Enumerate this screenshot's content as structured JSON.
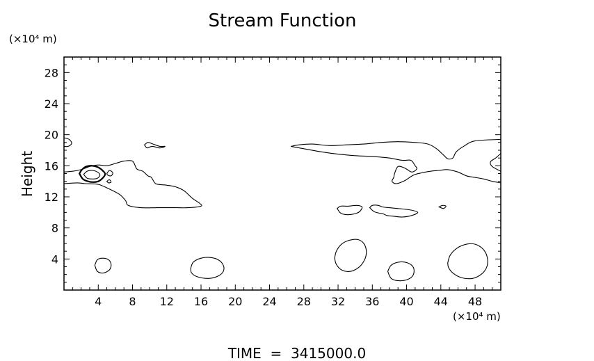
{
  "chart_data": {
    "type": "contour",
    "title": "Stream Function",
    "ylabel": "Height",
    "y_unit": "(×10⁴ m)",
    "x_unit": "(×10⁴ m)",
    "xlim": [
      0,
      51
    ],
    "ylim": [
      0,
      30
    ],
    "x_ticks": [
      4,
      8,
      12,
      16,
      20,
      24,
      28,
      32,
      36,
      40,
      44,
      48
    ],
    "y_ticks": [
      4,
      8,
      12,
      16,
      20,
      24,
      28
    ],
    "footer": "TIME  =  3415000.0",
    "contours": [
      {
        "heavy": false,
        "points": [
          [
            0,
            15.2
          ],
          [
            1,
            15.3
          ],
          [
            2,
            15.5
          ],
          [
            3,
            15.9
          ],
          [
            4,
            16.1
          ],
          [
            5,
            16.0
          ],
          [
            6,
            16.3
          ],
          [
            7,
            16.6
          ],
          [
            8,
            16.6
          ],
          [
            8.5,
            15.6
          ],
          [
            9.2,
            15.3
          ],
          [
            9.8,
            14.7
          ],
          [
            10.2,
            14.5
          ],
          [
            10.6,
            13.8
          ],
          [
            11,
            13.6
          ],
          [
            12,
            13.5
          ],
          [
            13,
            13.3
          ],
          [
            14,
            12.8
          ],
          [
            15,
            11.8
          ],
          [
            15.8,
            11.2
          ],
          [
            16,
            10.8
          ],
          [
            14.5,
            10.6
          ],
          [
            13,
            10.6
          ],
          [
            11,
            10.6
          ],
          [
            9,
            10.6
          ],
          [
            7.5,
            10.9
          ],
          [
            7.2,
            11.5
          ],
          [
            6.5,
            12.3
          ],
          [
            5.3,
            13.0
          ],
          [
            4,
            13.6
          ],
          [
            2.5,
            13.7
          ],
          [
            1.5,
            13.8
          ],
          [
            0,
            13.7
          ]
        ],
        "closed": false
      },
      {
        "heavy": false,
        "points": [
          [
            0,
            19.6
          ],
          [
            0.6,
            19.4
          ],
          [
            0.9,
            18.9
          ],
          [
            0.5,
            18.5
          ],
          [
            0,
            18.5
          ]
        ],
        "closed": false
      },
      {
        "heavy": false,
        "points": [
          [
            9.4,
            18.7
          ],
          [
            9.8,
            19.0
          ],
          [
            10.4,
            18.8
          ],
          [
            11.2,
            18.5
          ],
          [
            11.8,
            18.5
          ],
          [
            11.2,
            18.3
          ],
          [
            10.3,
            18.5
          ],
          [
            9.7,
            18.3
          ],
          [
            9.4,
            18.7
          ]
        ],
        "closed": true
      },
      {
        "heavy": true,
        "points": [
          [
            1.8,
            15.0
          ],
          [
            2.1,
            15.5
          ],
          [
            2.6,
            15.9
          ],
          [
            3.3,
            16.0
          ],
          [
            4.0,
            15.8
          ],
          [
            4.6,
            15.3
          ],
          [
            4.8,
            14.9
          ],
          [
            4.5,
            14.4
          ],
          [
            4.0,
            14.0
          ],
          [
            3.4,
            13.9
          ],
          [
            2.8,
            14.0
          ],
          [
            2.2,
            14.3
          ],
          [
            1.8,
            15.0
          ]
        ],
        "closed": true
      },
      {
        "heavy": false,
        "points": [
          [
            2.3,
            14.9
          ],
          [
            2.7,
            15.3
          ],
          [
            3.3,
            15.4
          ],
          [
            3.9,
            15.2
          ],
          [
            4.2,
            14.8
          ],
          [
            3.9,
            14.4
          ],
          [
            3.3,
            14.3
          ],
          [
            2.7,
            14.4
          ],
          [
            2.3,
            14.9
          ]
        ],
        "closed": true
      },
      {
        "heavy": false,
        "points": [
          [
            5.0,
            15.0
          ],
          [
            5.3,
            15.4
          ],
          [
            5.7,
            15.1
          ],
          [
            5.5,
            14.7
          ],
          [
            5.1,
            14.8
          ],
          [
            5.0,
            15.0
          ]
        ],
        "closed": true
      },
      {
        "heavy": false,
        "points": [
          [
            5.0,
            14.0
          ],
          [
            5.3,
            14.2
          ],
          [
            5.5,
            13.9
          ],
          [
            5.2,
            13.8
          ],
          [
            5.0,
            14.0
          ]
        ],
        "closed": true
      },
      {
        "heavy": false,
        "points": [
          [
            26.5,
            18.5
          ],
          [
            27.5,
            18.7
          ],
          [
            29,
            18.8
          ],
          [
            31,
            18.6
          ],
          [
            33,
            18.7
          ],
          [
            35,
            18.8
          ],
          [
            37,
            19.0
          ],
          [
            39,
            19.1
          ],
          [
            41,
            19.0
          ],
          [
            42.5,
            18.8
          ],
          [
            43.5,
            18.2
          ],
          [
            44.3,
            17.4
          ],
          [
            44.8,
            16.9
          ],
          [
            45.4,
            17.0
          ],
          [
            45.8,
            17.8
          ],
          [
            46.8,
            18.6
          ],
          [
            48,
            19.2
          ],
          [
            51,
            19.4
          ]
        ],
        "closed": false
      },
      {
        "heavy": false,
        "points": [
          [
            26.5,
            18.5
          ],
          [
            28,
            18.2
          ],
          [
            30,
            17.8
          ],
          [
            32,
            17.5
          ],
          [
            34,
            17.3
          ],
          [
            36,
            17.2
          ],
          [
            38,
            17.0
          ],
          [
            39.5,
            16.7
          ],
          [
            40.5,
            16.7
          ],
          [
            41,
            16.0
          ],
          [
            41.2,
            15.6
          ],
          [
            40.6,
            15.2
          ],
          [
            39.8,
            15.7
          ],
          [
            39,
            15.9
          ],
          [
            38.6,
            15.0
          ],
          [
            38.5,
            14.5
          ],
          [
            38.3,
            14.0
          ],
          [
            38.8,
            13.7
          ],
          [
            39.8,
            14.1
          ],
          [
            40.8,
            14.8
          ],
          [
            41.8,
            15.1
          ],
          [
            42.8,
            15.3
          ],
          [
            43.8,
            15.4
          ],
          [
            44.8,
            15.5
          ],
          [
            46,
            15.2
          ],
          [
            47,
            14.7
          ],
          [
            48,
            14.5
          ],
          [
            49,
            14.3
          ],
          [
            50,
            14.0
          ],
          [
            51,
            13.8
          ]
        ],
        "closed": false
      },
      {
        "heavy": false,
        "points": [
          [
            51,
            17.6
          ],
          [
            50.4,
            17.0
          ],
          [
            49.8,
            16.5
          ],
          [
            50.0,
            15.9
          ],
          [
            51,
            15.3
          ]
        ],
        "closed": false
      },
      {
        "heavy": false,
        "points": [
          [
            31.9,
            10.5
          ],
          [
            32.3,
            10.8
          ],
          [
            33.2,
            10.8
          ],
          [
            34.2,
            10.9
          ],
          [
            34.8,
            10.7
          ],
          [
            34.6,
            10.2
          ],
          [
            34.2,
            9.9
          ],
          [
            33.2,
            9.7
          ],
          [
            32.5,
            9.8
          ],
          [
            32.2,
            10.0
          ],
          [
            31.9,
            10.5
          ]
        ],
        "closed": true
      },
      {
        "heavy": false,
        "points": [
          [
            35.7,
            10.6
          ],
          [
            36,
            10.9
          ],
          [
            36.7,
            10.9
          ],
          [
            37.2,
            10.7
          ],
          [
            38,
            10.6
          ],
          [
            39,
            10.5
          ],
          [
            40.5,
            10.3
          ],
          [
            41.3,
            10.0
          ],
          [
            40.6,
            9.6
          ],
          [
            39.5,
            9.4
          ],
          [
            38.5,
            9.5
          ],
          [
            37.7,
            9.6
          ],
          [
            37.3,
            9.8
          ],
          [
            36.8,
            9.9
          ],
          [
            36.2,
            10.1
          ],
          [
            35.7,
            10.6
          ]
        ],
        "closed": true
      },
      {
        "heavy": false,
        "points": [
          [
            43.8,
            10.7
          ],
          [
            44.2,
            10.9
          ],
          [
            44.6,
            10.8
          ],
          [
            44.3,
            10.5
          ],
          [
            43.8,
            10.7
          ]
        ],
        "closed": true
      },
      {
        "heavy": false,
        "points": [
          [
            3.6,
            3.2
          ],
          [
            3.9,
            3.9
          ],
          [
            4.5,
            4.1
          ],
          [
            5.2,
            3.9
          ],
          [
            5.5,
            3.3
          ],
          [
            5.3,
            2.6
          ],
          [
            4.6,
            2.2
          ],
          [
            3.9,
            2.4
          ],
          [
            3.6,
            3.2
          ]
        ],
        "closed": true
      },
      {
        "heavy": false,
        "points": [
          [
            14.8,
            2.8
          ],
          [
            15.1,
            3.6
          ],
          [
            16.0,
            4.1
          ],
          [
            17.0,
            4.2
          ],
          [
            18.0,
            3.9
          ],
          [
            18.6,
            3.2
          ],
          [
            18.6,
            2.4
          ],
          [
            18.0,
            1.8
          ],
          [
            16.9,
            1.5
          ],
          [
            15.6,
            1.7
          ],
          [
            14.9,
            2.2
          ],
          [
            14.8,
            2.8
          ]
        ],
        "closed": true
      },
      {
        "heavy": false,
        "points": [
          [
            31.6,
            4.1
          ],
          [
            31.8,
            5.0
          ],
          [
            32.4,
            5.9
          ],
          [
            33.3,
            6.4
          ],
          [
            34.3,
            6.5
          ],
          [
            35.0,
            6.0
          ],
          [
            35.3,
            5.0
          ],
          [
            35.1,
            3.9
          ],
          [
            34.4,
            2.9
          ],
          [
            33.4,
            2.4
          ],
          [
            32.4,
            2.6
          ],
          [
            31.8,
            3.3
          ],
          [
            31.6,
            4.1
          ]
        ],
        "closed": true
      },
      {
        "heavy": false,
        "points": [
          [
            37.8,
            2.4
          ],
          [
            38.2,
            3.2
          ],
          [
            39.1,
            3.6
          ],
          [
            40.1,
            3.5
          ],
          [
            40.8,
            2.9
          ],
          [
            40.8,
            2.0
          ],
          [
            40.2,
            1.4
          ],
          [
            39.1,
            1.2
          ],
          [
            38.2,
            1.5
          ],
          [
            37.8,
            2.4
          ]
        ],
        "closed": true
      },
      {
        "heavy": false,
        "points": [
          [
            44.8,
            3.5
          ],
          [
            45.1,
            4.5
          ],
          [
            45.9,
            5.4
          ],
          [
            47.0,
            5.9
          ],
          [
            48.0,
            5.9
          ],
          [
            48.9,
            5.3
          ],
          [
            49.4,
            4.3
          ],
          [
            49.4,
            3.1
          ],
          [
            48.8,
            2.1
          ],
          [
            47.7,
            1.5
          ],
          [
            46.4,
            1.6
          ],
          [
            45.4,
            2.2
          ],
          [
            44.9,
            2.9
          ],
          [
            44.8,
            3.5
          ]
        ],
        "closed": true
      }
    ]
  }
}
